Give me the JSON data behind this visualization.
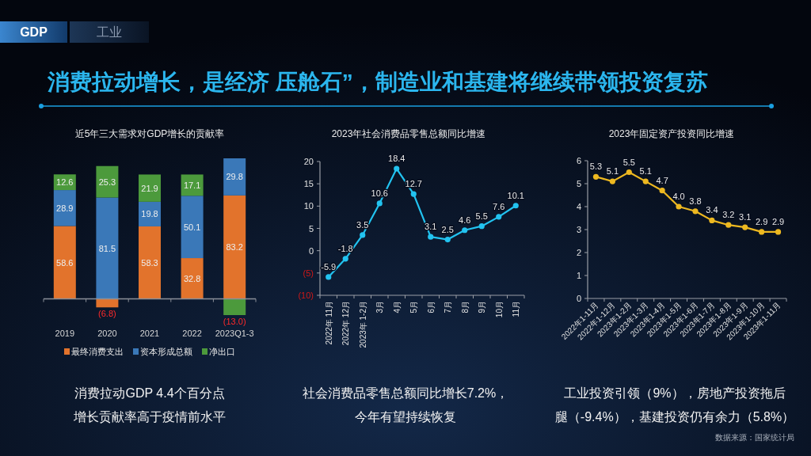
{
  "chart_data": [
    {
      "type": "other",
      "title": "消费拉动增长，是经济 压舱石”，制造业和基建将继续带领投资复苏",
      "annotations": [
        "GDP",
        "工业",
        "数据来源：国家统计局"
      ]
    },
    {
      "type": "bar",
      "title": "近5年三大需求对GDP增长的贡献率",
      "categories": [
        "2019",
        "2020",
        "2021",
        "2022",
        "2023Q1-3"
      ],
      "stacked": true,
      "tick_labels": "x",
      "legend": "bottom",
      "series": [
        {
          "name": "最终消费支出",
          "color": "#e2732c",
          "values": [
            58.6,
            -6.8,
            58.3,
            32.8,
            83.2
          ],
          "value_labels": [
            "58.6",
            "(6.8)",
            "58.3",
            "32.8",
            "83.2"
          ]
        },
        {
          "name": "资本形成总额",
          "color": "#3a78b8",
          "values": [
            28.9,
            81.5,
            19.8,
            50.1,
            29.8
          ],
          "value_labels": [
            "28.9",
            "81.5",
            "19.8",
            "50.1",
            "29.8"
          ]
        },
        {
          "name": "净出口",
          "color": "#4c9a3c",
          "values": [
            12.6,
            25.3,
            21.9,
            17.1,
            -13.0
          ],
          "value_labels": [
            "12.6",
            "25.3",
            "21.9",
            "17.1",
            "(13.0)"
          ]
        }
      ],
      "annotations": [
        "消费拉动GDP 4.4个百分点",
        "增长贡献率高于疫情前水平"
      ]
    },
    {
      "type": "line",
      "title": "2023年社会消费品零售总额同比增速",
      "categories": [
        "2022年 11月",
        "2022年 12月",
        "2023年 1-2月",
        "3月",
        "4月",
        "5月",
        "6月",
        "7月",
        "8月",
        "9月",
        "10月",
        "11月"
      ],
      "ylim": [
        -10,
        20
      ],
      "yticks": [
        {
          "value": -10,
          "label": "(10)"
        },
        {
          "value": -5,
          "label": "(5)"
        },
        0,
        5,
        10,
        15,
        20
      ],
      "marker": "circle",
      "data_labels": true,
      "series": [
        {
          "color": "#22c3f0",
          "values": [
            -5.9,
            -1.8,
            3.5,
            10.6,
            18.4,
            12.7,
            3.1,
            2.5,
            4.6,
            5.5,
            7.6,
            10.1
          ]
        }
      ],
      "annotations": [
        "社会消费品零售总额同比增长7.2%，",
        "今年有望持续恢复"
      ]
    },
    {
      "type": "line",
      "title": "2023年固定资产投资同比增速",
      "categories": [
        "2022年1-11月",
        "2022年1-12月",
        "2023年1-2月",
        "2023年1-3月",
        "2023年1-4月",
        "2023年1-5月",
        "2023年1-6月",
        "2023年1-7月",
        "2023年1-8月",
        "2023年1-9月",
        "2023年1-10月",
        "2023年1-11月"
      ],
      "ylim": [
        0,
        6
      ],
      "yticks": [
        0,
        1,
        2,
        3,
        4,
        5,
        6
      ],
      "marker": "circle",
      "series": [
        {
          "color": "#edb820",
          "values": [
            5.3,
            5.1,
            5.5,
            5.1,
            4.7,
            4.0,
            3.8,
            3.4,
            3.2,
            3.1,
            2.9,
            2.9
          ],
          "value_labels": [
            "5.3",
            "5.1",
            "5.5",
            "5.1",
            "4.7",
            "4.0",
            "3.8",
            "3.4",
            "3.2",
            "3.1",
            "2.9",
            "2.9"
          ]
        }
      ],
      "annotations": [
        "工业投资引领（9%），房地产投资拖后",
        "腿（-9.4%），基建投资仍有余力（5.8%）"
      ]
    }
  ]
}
